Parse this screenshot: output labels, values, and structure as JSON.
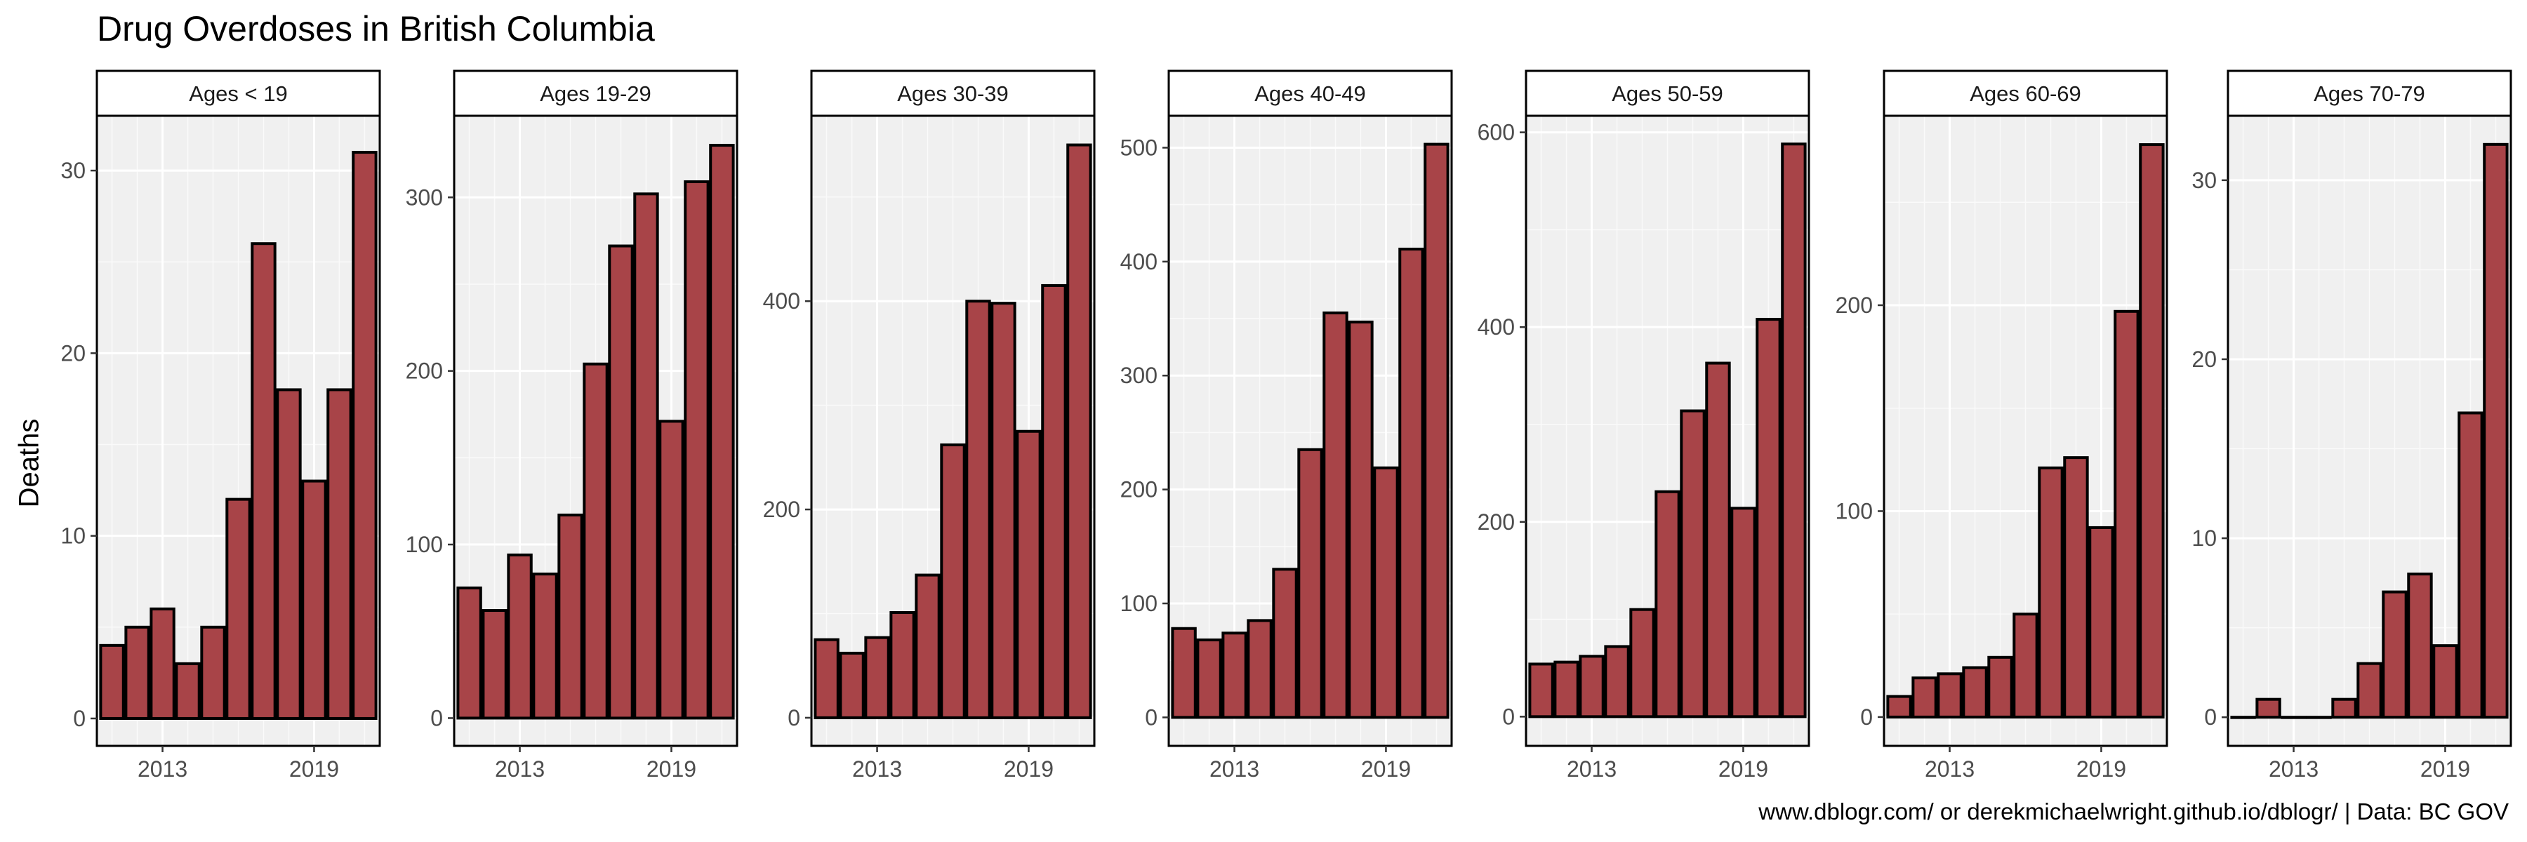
{
  "page": {
    "title": "Drug Overdoses in British Columbia",
    "caption": "www.dblogr.com/ or derekmichaelwright.github.io/dblogr/ | Data: BC GOV"
  },
  "colors": {
    "bar_fill": "#A84448",
    "bar_stroke": "#000000",
    "panel_bg": "#F0F0F0",
    "grid_major": "#FFFFFF",
    "strip_bg": "#FFFFFF"
  },
  "chart_data": {
    "type": "bar",
    "title": "Drug Overdoses in British Columbia",
    "ylabel": "Deaths",
    "xlabel": "",
    "x": [
      2011,
      2012,
      2013,
      2014,
      2015,
      2016,
      2017,
      2018,
      2019,
      2020,
      2021
    ],
    "x_tick_labels": [
      "2013",
      "2019"
    ],
    "x_tick_values": [
      2013,
      2019
    ],
    "grid": true,
    "facets": [
      {
        "label": "Ages < 19",
        "values": [
          4,
          5,
          6,
          3,
          5,
          12,
          26,
          18,
          13,
          18,
          31
        ],
        "ylim": [
          -1.5,
          33
        ],
        "yticks": [
          0,
          10,
          20,
          30
        ]
      },
      {
        "label": "Ages 19-29",
        "values": [
          75,
          62,
          94,
          83,
          117,
          204,
          272,
          302,
          171,
          309,
          330
        ],
        "ylim": [
          -16,
          347
        ],
        "yticks": [
          0,
          100,
          200,
          300
        ]
      },
      {
        "label": "Ages 30-39",
        "values": [
          75,
          62,
          77,
          101,
          137,
          262,
          400,
          398,
          275,
          415,
          550
        ],
        "ylim": [
          -27,
          578
        ],
        "yticks": [
          0,
          200,
          400
        ]
      },
      {
        "label": "Ages 40-49",
        "values": [
          78,
          68,
          74,
          85,
          130,
          235,
          355,
          347,
          219,
          411,
          503
        ],
        "ylim": [
          -25,
          528
        ],
        "yticks": [
          0,
          100,
          200,
          300,
          400,
          500
        ]
      },
      {
        "label": "Ages 50-59",
        "values": [
          54,
          56,
          62,
          72,
          110,
          231,
          314,
          363,
          214,
          408,
          588
        ],
        "ylim": [
          -30,
          617
        ],
        "yticks": [
          0,
          200,
          400,
          600
        ]
      },
      {
        "label": "Ages 60-69",
        "values": [
          10,
          19,
          21,
          24,
          29,
          50,
          121,
          126,
          92,
          197,
          278
        ],
        "ylim": [
          -14,
          292
        ],
        "yticks": [
          0,
          100,
          200
        ]
      },
      {
        "label": "Ages 70-79",
        "values": [
          0,
          1,
          0,
          0,
          1,
          3,
          7,
          8,
          4,
          17,
          32
        ],
        "ylim": [
          -1.6,
          33.6
        ],
        "yticks": [
          0,
          10,
          20,
          30
        ]
      }
    ]
  }
}
